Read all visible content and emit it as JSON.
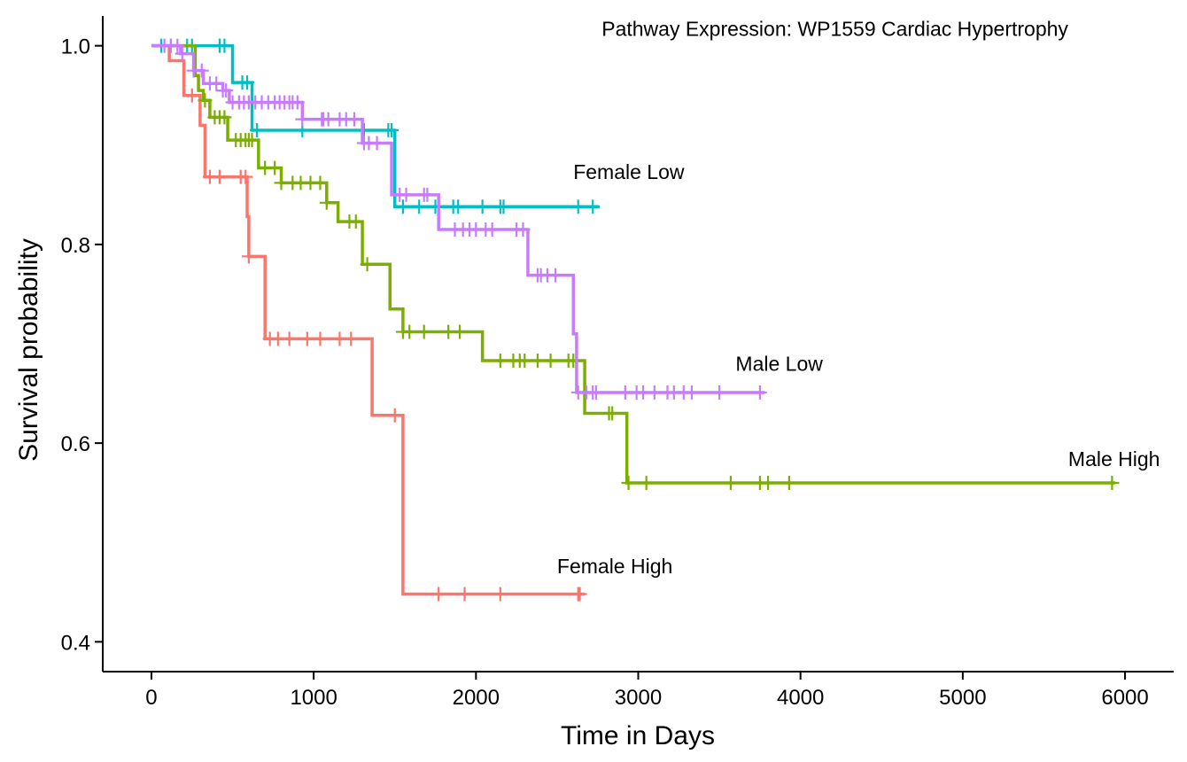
{
  "chart_data": {
    "type": "line",
    "subtype": "kaplan-meier-step",
    "title": "",
    "xlabel": "Time in Days",
    "ylabel": "Survival probability",
    "xlim": [
      -300,
      6300
    ],
    "ylim": [
      0.37,
      1.03
    ],
    "xticks": [
      0,
      1000,
      2000,
      3000,
      4000,
      5000,
      6000
    ],
    "yticks": [
      0.4,
      0.6,
      0.8,
      1.0
    ],
    "xtick_labels": [
      "0",
      "1000",
      "2000",
      "3000",
      "4000",
      "5000",
      "6000"
    ],
    "ytick_labels": [
      "0.4",
      "0.6",
      "0.8",
      "1.0"
    ],
    "grid": false,
    "legend": "none",
    "annotations": [
      {
        "text": "Pathway Expression: WP1559 Cardiac Hypertrophy",
        "x": 5650,
        "y": 1.01,
        "anchor": "end"
      },
      {
        "text": "Female Low",
        "x": 2600,
        "y": 0.866,
        "anchor": "start"
      },
      {
        "text": "Male Low",
        "x": 3600,
        "y": 0.673,
        "anchor": "start"
      },
      {
        "text": "Male High",
        "x": 5650,
        "y": 0.577,
        "anchor": "start"
      },
      {
        "text": "Female High",
        "x": 2500,
        "y": 0.469,
        "anchor": "start"
      }
    ],
    "series": [
      {
        "name": "Female High",
        "color": "#F8766D",
        "steps": [
          [
            0,
            1.0
          ],
          [
            110,
            0.985
          ],
          [
            200,
            0.95
          ],
          [
            300,
            0.92
          ],
          [
            330,
            0.868
          ],
          [
            590,
            0.828
          ],
          [
            600,
            0.788
          ],
          [
            700,
            0.705
          ],
          [
            1360,
            0.628
          ],
          [
            1550,
            0.448
          ]
        ],
        "end": 2670,
        "censors": [
          250,
          360,
          420,
          550,
          580,
          600,
          730,
          780,
          850,
          960,
          1040,
          1160,
          1230,
          1500,
          1770,
          1930,
          2150,
          2630,
          2640
        ]
      },
      {
        "name": "Female Low",
        "color": "#00BFC4",
        "steps": [
          [
            0,
            1.0
          ],
          [
            500,
            0.963
          ],
          [
            620,
            0.915
          ],
          [
            1500,
            0.838
          ]
        ],
        "end": 2760,
        "censors": [
          60,
          120,
          220,
          250,
          420,
          450,
          560,
          590,
          650,
          930,
          1310,
          1460,
          1480,
          1550,
          1650,
          1750,
          1860,
          1890,
          2040,
          2150,
          2170,
          2630,
          2720
        ]
      },
      {
        "name": "Male High",
        "color": "#7CAE00",
        "steps": [
          [
            0,
            1.0
          ],
          [
            270,
            0.97
          ],
          [
            290,
            0.955
          ],
          [
            320,
            0.945
          ],
          [
            360,
            0.928
          ],
          [
            470,
            0.905
          ],
          [
            660,
            0.877
          ],
          [
            800,
            0.862
          ],
          [
            1080,
            0.842
          ],
          [
            1150,
            0.823
          ],
          [
            1300,
            0.78
          ],
          [
            1470,
            0.735
          ],
          [
            1550,
            0.712
          ],
          [
            2040,
            0.683
          ],
          [
            2670,
            0.63
          ],
          [
            2930,
            0.56
          ]
        ],
        "end": 5940,
        "censors": [
          330,
          390,
          420,
          450,
          520,
          550,
          580,
          600,
          620,
          700,
          760,
          800,
          870,
          920,
          980,
          1040,
          1080,
          1220,
          1260,
          1330,
          1550,
          1590,
          1680,
          1830,
          1900,
          2150,
          2230,
          2270,
          2300,
          2380,
          2460,
          2570,
          2600,
          2820,
          2840,
          2940,
          3050,
          3570,
          3750,
          3800,
          3930,
          5920
        ]
      },
      {
        "name": "Male Low",
        "color": "#C77CFF",
        "steps": [
          [
            0,
            1.0
          ],
          [
            180,
            0.992
          ],
          [
            260,
            0.975
          ],
          [
            320,
            0.962
          ],
          [
            440,
            0.955
          ],
          [
            480,
            0.943
          ],
          [
            930,
            0.926
          ],
          [
            1300,
            0.902
          ],
          [
            1480,
            0.85
          ],
          [
            1770,
            0.815
          ],
          [
            2320,
            0.769
          ],
          [
            2600,
            0.71
          ],
          [
            2620,
            0.651
          ]
        ],
        "end": 3780,
        "censors": [
          80,
          120,
          160,
          190,
          260,
          310,
          360,
          400,
          440,
          460,
          500,
          540,
          570,
          600,
          640,
          680,
          720,
          760,
          790,
          820,
          850,
          870,
          900,
          930,
          1050,
          1060,
          1090,
          1160,
          1200,
          1250,
          1310,
          1340,
          1390,
          1530,
          1570,
          1680,
          1700,
          1870,
          1920,
          1960,
          2000,
          2060,
          2100,
          2250,
          2290,
          2380,
          2400,
          2440,
          2490,
          2630,
          2680,
          2720,
          2740,
          2920,
          2990,
          3030,
          3100,
          3180,
          3220,
          3280,
          3330,
          3500,
          3750
        ]
      }
    ]
  }
}
